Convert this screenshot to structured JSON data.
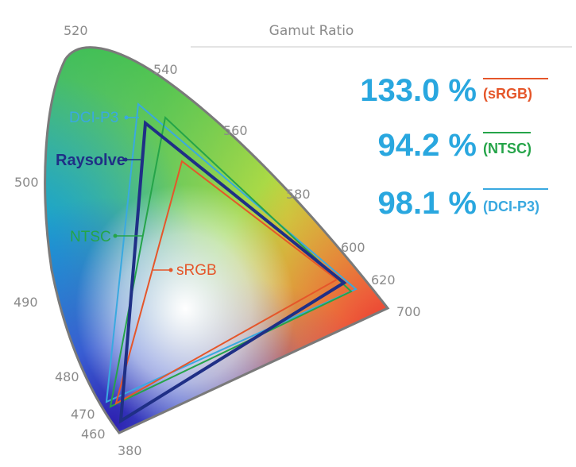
{
  "header": {
    "title": "Gamut Ratio"
  },
  "wavelengths": [
    "520",
    "540",
    "560",
    "580",
    "600",
    "620",
    "700",
    "500",
    "490",
    "480",
    "470",
    "460",
    "380"
  ],
  "gamuts": {
    "dcip3": {
      "label": "DCI-P3",
      "color": "#3aa9e0"
    },
    "raysolve": {
      "label": "Raysolve",
      "color": "#1f2f86"
    },
    "ntsc": {
      "label": "NTSC",
      "color": "#25a449"
    },
    "srgb": {
      "label": "sRGB",
      "color": "#e5562a"
    }
  },
  "ratios": [
    {
      "value": "133.0 %",
      "standard": "(sRGB)",
      "color": "#e5562a"
    },
    {
      "value": "94.2 %",
      "standard": "(NTSC)",
      "color": "#25a449"
    },
    {
      "value": "98.1 %",
      "standard": "(DCI-P3)",
      "color": "#3aa9e0"
    }
  ],
  "colors": {
    "ratio_value": "#29a7df",
    "wavelength": "#8a8a8a",
    "locus": "#7a7a7a"
  }
}
